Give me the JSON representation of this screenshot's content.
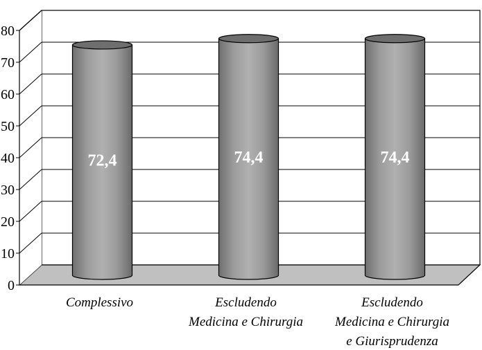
{
  "chart_data": {
    "type": "bar",
    "style": "3d-cylinder",
    "categories": [
      [
        "Complessivo"
      ],
      [
        "Escludendo",
        "Medicina e Chirurgia"
      ],
      [
        "Escludendo",
        "Medicina e Chirurgia",
        "e Giurisprudenza"
      ]
    ],
    "values": [
      72.4,
      74.4,
      74.4
    ],
    "data_labels": [
      "72,4",
      "74,4",
      "74,4"
    ],
    "ylim": [
      0,
      80
    ],
    "yticks": [
      0,
      10,
      20,
      30,
      40,
      50,
      60,
      70,
      80
    ],
    "grid": true,
    "legend": "none",
    "colors": {
      "bar_fill": "#9a9a9a",
      "bar_top": "#6e6e6e",
      "floor": "#c0c0c0",
      "data_label": "#ffffff"
    }
  }
}
